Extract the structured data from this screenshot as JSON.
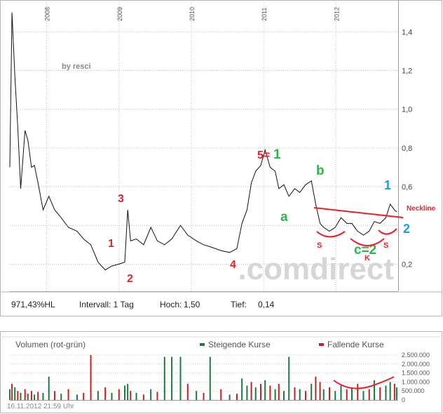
{
  "chart_data": [
    {
      "type": "line",
      "x": [
        2007.49,
        2007.52,
        2007.56,
        2007.6,
        2007.64,
        2007.7,
        2007.74,
        2007.79,
        2007.83,
        2007.88,
        2007.95,
        2008.03,
        2008.11,
        2008.2,
        2008.3,
        2008.42,
        2008.51,
        2008.61,
        2008.71,
        2008.81,
        2008.9,
        2009.0,
        2009.08,
        2009.12,
        2009.16,
        2009.24,
        2009.34,
        2009.44,
        2009.53,
        2009.63,
        2009.73,
        2009.85,
        2009.95,
        2010.07,
        2010.17,
        2010.26,
        2010.41,
        2010.53,
        2010.63,
        2010.7,
        2010.77,
        2010.83,
        2010.89,
        2010.96,
        2011.02,
        2011.09,
        2011.16,
        2011.21,
        2011.28,
        2011.35,
        2011.43,
        2011.5,
        2011.58,
        2011.66,
        2011.72,
        2011.78,
        2011.83,
        2011.91,
        2011.99,
        2012.07,
        2012.15,
        2012.22,
        2012.3,
        2012.38,
        2012.46,
        2012.53,
        2012.61,
        2012.69,
        2012.75,
        2012.81,
        2012.84
      ],
      "values": [
        0.7,
        1.5,
        1.17,
        0.91,
        0.59,
        0.89,
        0.84,
        0.7,
        0.71,
        0.62,
        0.48,
        0.55,
        0.48,
        0.44,
        0.39,
        0.37,
        0.33,
        0.3,
        0.21,
        0.17,
        0.19,
        0.2,
        0.21,
        0.48,
        0.32,
        0.33,
        0.3,
        0.39,
        0.32,
        0.3,
        0.33,
        0.4,
        0.35,
        0.32,
        0.3,
        0.29,
        0.27,
        0.26,
        0.28,
        0.41,
        0.48,
        0.62,
        0.68,
        0.71,
        0.79,
        0.7,
        0.68,
        0.59,
        0.61,
        0.55,
        0.59,
        0.57,
        0.61,
        0.63,
        0.51,
        0.41,
        0.39,
        0.37,
        0.39,
        0.44,
        0.41,
        0.41,
        0.37,
        0.35,
        0.37,
        0.42,
        0.41,
        0.44,
        0.51,
        0.48,
        0.47
      ],
      "color": "#111111",
      "xlim": [
        2007.49,
        2012.86
      ],
      "xticks": [
        2008,
        2009,
        2010,
        2011,
        2012
      ],
      "ylim": [
        0.06,
        1.51
      ],
      "yticks": [
        {
          "value": 0.2,
          "label": "0,2"
        },
        {
          "value": 0.4
        },
        {
          "value": 0.6,
          "label": "0,6"
        },
        {
          "value": 0.8,
          "label": "0,8"
        },
        {
          "value": 1.0,
          "label": "1,0"
        },
        {
          "value": 1.2,
          "label": "1,2"
        },
        {
          "value": 1.4,
          "label": "1,4"
        }
      ],
      "grid": true,
      "annotations": [
        {
          "text": "by resci",
          "color": "#888888"
        },
        {
          "text": "1",
          "color": "#e8202a"
        },
        {
          "text": "2",
          "color": "#e8202a"
        },
        {
          "text": "3",
          "color": "#e8202a"
        },
        {
          "text": "4",
          "color": "#e8202a"
        },
        {
          "text": "5=",
          "color": "#e8202a"
        },
        {
          "text": "1",
          "color": "#2fb34a"
        },
        {
          "text": "a",
          "color": "#2fb34a"
        },
        {
          "text": "b",
          "color": "#2fb34a"
        },
        {
          "text": "c=2",
          "color": "#2fb34a"
        },
        {
          "text": "1",
          "color": "#1ea0dc"
        },
        {
          "text": "2",
          "color": "#1ea0dc"
        },
        {
          "text": "S",
          "color": "#e8202a"
        },
        {
          "text": "K",
          "color": "#e8202a"
        },
        {
          "text": "S",
          "color": "#e8202a"
        },
        {
          "text": "Neckline",
          "color": "#e8202a"
        }
      ],
      "watermark": ".comdirect",
      "info": [
        "971,43%HL",
        "Intervall: 1 Tag",
        "Hoch:",
        "1,50",
        "Tief:",
        "0,14"
      ]
    },
    {
      "type": "bar",
      "title": "Volumen (rot-grün)",
      "x": [
        2007.49,
        2007.52,
        2007.56,
        2007.6,
        2007.64,
        2007.7,
        2007.74,
        2007.79,
        2007.83,
        2007.88,
        2007.95,
        2008.03,
        2008.11,
        2008.2,
        2008.3,
        2008.42,
        2008.51,
        2008.61,
        2008.71,
        2008.81,
        2008.9,
        2009.0,
        2009.08,
        2009.12,
        2009.16,
        2009.24,
        2009.34,
        2009.44,
        2009.53,
        2009.63,
        2009.73,
        2009.85,
        2009.95,
        2010.07,
        2010.17,
        2010.26,
        2010.41,
        2010.53,
        2010.63,
        2010.7,
        2010.77,
        2010.83,
        2010.89,
        2010.96,
        2011.02,
        2011.09,
        2011.16,
        2011.21,
        2011.28,
        2011.35,
        2011.43,
        2011.5,
        2011.58,
        2011.66,
        2011.72,
        2011.78,
        2011.83,
        2011.91,
        2011.99,
        2012.07,
        2012.15,
        2012.22,
        2012.3,
        2012.38,
        2012.46,
        2012.53,
        2012.61,
        2012.69,
        2012.75,
        2012.81,
        2012.84
      ],
      "series": [
        {
          "name": "Steigende Kurse",
          "color": "#1e7a3c",
          "values": [
            600000,
            null,
            700000,
            null,
            400000,
            null,
            350000,
            null,
            300000,
            null,
            400000,
            1300000,
            null,
            350000,
            null,
            300000,
            null,
            null,
            500000,
            null,
            400000,
            null,
            800000,
            900000,
            null,
            400000,
            null,
            600000,
            null,
            2400000,
            2400000,
            2400000,
            null,
            500000,
            null,
            2400000,
            null,
            300000,
            null,
            1200000,
            800000,
            null,
            700000,
            null,
            1100000,
            null,
            600000,
            null,
            500000,
            2400000,
            null,
            600000,
            null,
            900000,
            null,
            null,
            600000,
            null,
            500000,
            800000,
            null,
            700000,
            null,
            500000,
            null,
            1100000,
            null,
            800000,
            1000000,
            null,
            700000
          ]
        },
        {
          "name": "Fallende Kurse",
          "color": "#c8201e",
          "values": [
            null,
            900000,
            null,
            500000,
            null,
            600000,
            null,
            500000,
            null,
            450000,
            null,
            null,
            500000,
            null,
            600000,
            null,
            400000,
            2500000,
            null,
            700000,
            null,
            600000,
            null,
            null,
            500000,
            null,
            300000,
            null,
            450000,
            null,
            null,
            null,
            900000,
            null,
            400000,
            null,
            600000,
            null,
            350000,
            null,
            null,
            1000000,
            null,
            900000,
            null,
            800000,
            null,
            900000,
            null,
            null,
            700000,
            null,
            500000,
            null,
            1300000,
            1000000,
            null,
            700000,
            null,
            null,
            600000,
            null,
            900000,
            null,
            600000,
            null,
            700000,
            null,
            null,
            900000,
            null
          ]
        }
      ],
      "xlim": [
        2007.49,
        2012.86
      ],
      "ylim": [
        0,
        2600000
      ],
      "yticks": [
        {
          "value": 0,
          "label": "0"
        },
        {
          "value": 500000,
          "label": "500.000"
        },
        {
          "value": 1000000,
          "label": "1.000.000"
        },
        {
          "value": 1500000,
          "label": "1.500.000"
        },
        {
          "value": 2000000,
          "label": "2.000.000"
        },
        {
          "value": 2500000,
          "label": "2.500.000"
        }
      ],
      "grid": true,
      "timestamp": "16.11.2012 21:59 Uhr"
    }
  ]
}
